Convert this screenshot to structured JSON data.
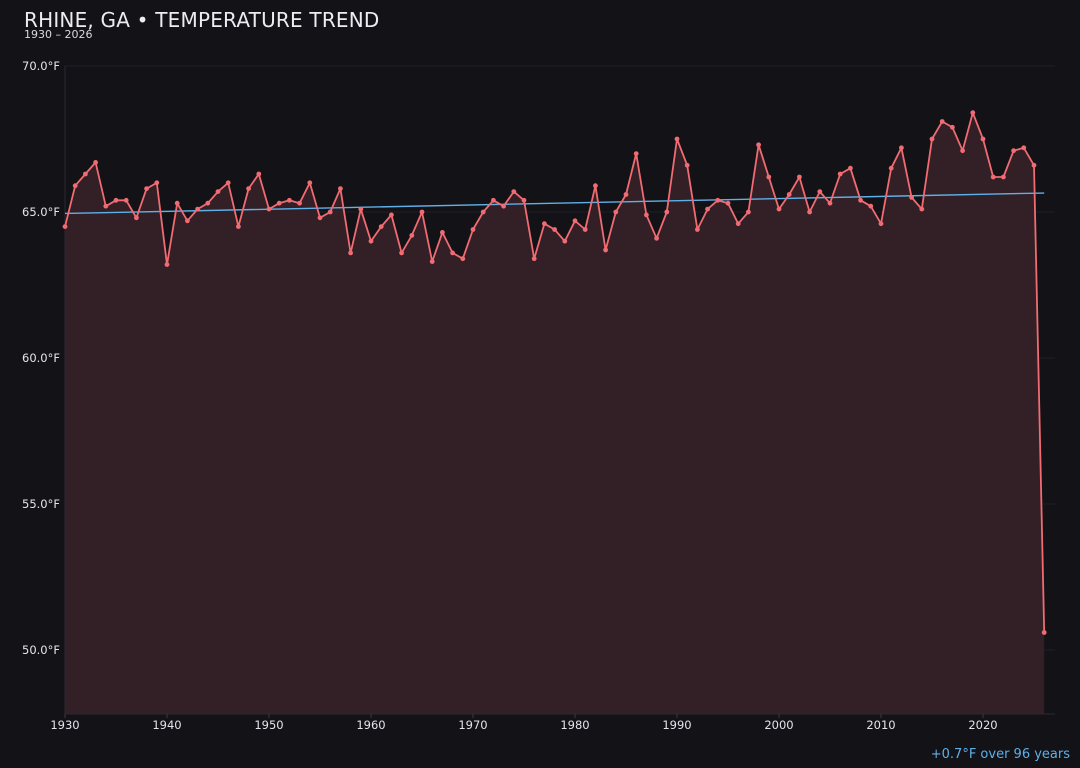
{
  "header": {
    "title": "RHINE, GA • TEMPERATURE TREND",
    "subtitle": "1930 – 2026"
  },
  "footnote": "+0.7°F over 96 years",
  "colors": {
    "background": "#131217",
    "series_line": "#f06b72",
    "series_fill": "#331f26",
    "trend_line": "#5fb0e8",
    "grid": "#201f26"
  },
  "chart_data": {
    "type": "line",
    "title": "RHINE, GA • TEMPERATURE TREND",
    "subtitle": "1930 – 2026",
    "xlabel": "",
    "ylabel": "",
    "xlim": [
      1930,
      2027
    ],
    "ylim": [
      47.8,
      70.0
    ],
    "x_ticks": [
      1930,
      1940,
      1950,
      1960,
      1970,
      1980,
      1990,
      2000,
      2010,
      2020
    ],
    "y_ticks": [
      50.0,
      55.0,
      60.0,
      65.0,
      70.0
    ],
    "y_tick_labels": [
      "50.0°F",
      "55.0°F",
      "60.0°F",
      "65.0°F",
      "70.0°F"
    ],
    "grid": true,
    "area_fill": true,
    "series": [
      {
        "x": [
          1930,
          1931,
          1932,
          1933,
          1934,
          1935,
          1936,
          1937,
          1938,
          1939,
          1940,
          1941,
          1942,
          1943,
          1944,
          1945,
          1946,
          1947,
          1948,
          1949,
          1950,
          1951,
          1952,
          1953,
          1954,
          1955,
          1956,
          1957,
          1958,
          1959,
          1960,
          1961,
          1962,
          1963,
          1964,
          1965,
          1966,
          1967,
          1968,
          1969,
          1970,
          1971,
          1972,
          1973,
          1974,
          1975,
          1976,
          1977,
          1978,
          1979,
          1980,
          1981,
          1982,
          1983,
          1984,
          1985,
          1986,
          1987,
          1988,
          1989,
          1990,
          1991,
          1992,
          1993,
          1994,
          1995,
          1996,
          1997,
          1998,
          1999,
          2000,
          2001,
          2002,
          2003,
          2004,
          2005,
          2006,
          2007,
          2008,
          2009,
          2010,
          2011,
          2012,
          2013,
          2014,
          2015,
          2016,
          2017,
          2018,
          2019,
          2020,
          2021,
          2022,
          2023,
          2024,
          2025,
          2026
        ],
        "values": [
          64.5,
          65.9,
          66.3,
          66.7,
          65.2,
          65.4,
          65.4,
          64.8,
          65.8,
          66.0,
          63.2,
          65.3,
          64.7,
          65.1,
          65.3,
          65.7,
          66.0,
          64.5,
          65.8,
          66.3,
          65.1,
          65.3,
          65.4,
          65.3,
          66.0,
          64.8,
          65.0,
          65.8,
          63.6,
          65.1,
          64.0,
          64.5,
          64.9,
          63.6,
          64.2,
          65.0,
          63.3,
          64.3,
          63.6,
          63.4,
          64.4,
          65.0,
          65.4,
          65.2,
          65.7,
          65.4,
          63.4,
          64.6,
          64.4,
          64.0,
          64.7,
          64.4,
          65.9,
          63.7,
          65.0,
          65.6,
          67.0,
          64.9,
          64.1,
          65.0,
          67.5,
          66.6,
          64.4,
          65.1,
          65.4,
          65.3,
          64.6,
          65.0,
          67.3,
          66.2,
          65.1,
          65.6,
          66.2,
          65.0,
          65.7,
          65.3,
          66.3,
          66.5,
          65.4,
          65.2,
          64.6,
          66.5,
          67.2,
          65.5,
          65.1,
          67.5,
          68.1,
          67.9,
          67.1,
          68.4,
          67.5,
          66.2,
          66.2,
          67.1,
          67.2,
          66.6,
          50.6
        ]
      }
    ],
    "trend": {
      "start": [
        1930,
        64.95
      ],
      "end": [
        2026,
        65.65
      ]
    }
  }
}
